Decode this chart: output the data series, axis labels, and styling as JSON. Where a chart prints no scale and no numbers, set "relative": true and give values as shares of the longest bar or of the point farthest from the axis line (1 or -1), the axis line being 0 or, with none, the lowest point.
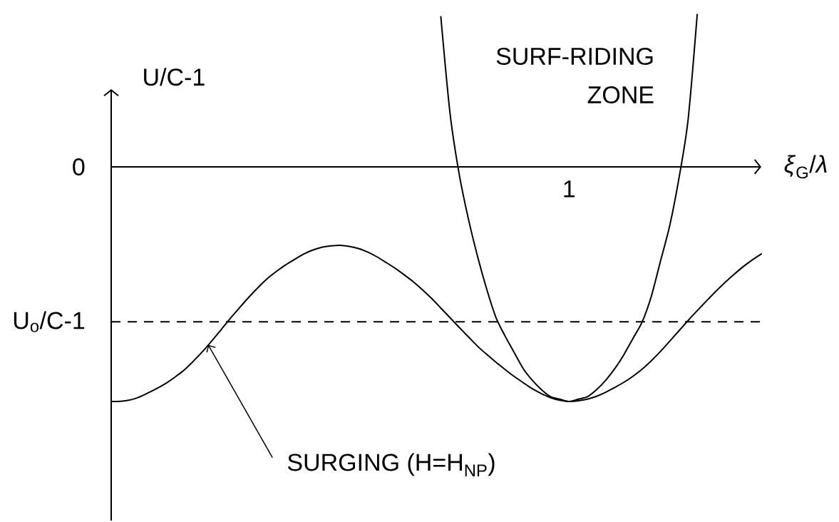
{
  "chart_data": {
    "type": "line",
    "relative": true,
    "xlabel": "*ξ*$_{G}$/*λ*",
    "ylabel": "U/C-1",
    "categories": [
      null,
      null,
      null,
      null,
      null,
      null,
      null,
      null,
      null,
      null,
      null,
      null,
      null,
      null,
      null,
      null,
      null,
      null,
      null,
      null,
      null,
      null,
      null,
      null,
      null,
      null,
      null,
      null,
      null,
      null,
      null,
      null,
      null,
      null,
      null,
      null,
      null,
      null,
      null,
      null,
      null,
      null,
      null,
      null,
      null,
      null,
      null,
      null,
      null,
      null,
      null,
      null,
      null,
      null,
      null,
      null,
      null,
      null,
      null,
      null,
      null,
      null,
      null,
      null,
      null,
      null,
      null,
      null,
      null,
      null,
      null,
      null
    ],
    "series": [
      {
        "color": "#000000",
        "values": [
          -1,
          -0.999,
          -0.994,
          -0.982,
          -0.964,
          -0.944,
          -0.922,
          -0.895,
          -0.865,
          -0.827,
          -0.786,
          -0.741,
          -0.694,
          -0.646,
          -0.601,
          -0.557,
          -0.516,
          -0.478,
          -0.447,
          -0.419,
          -0.395,
          -0.372,
          -0.355,
          -0.343,
          -0.337,
          -0.334,
          -0.339,
          -0.348,
          -0.363,
          -0.383,
          -0.407,
          -0.432,
          -0.46,
          -0.49,
          -0.524,
          -0.561,
          -0.602,
          -0.643,
          -0.684,
          -0.724,
          -0.764,
          -0.799,
          -0.832,
          -0.863,
          -0.893,
          -0.92,
          -0.946,
          -0.967,
          -0.984,
          -0.995,
          -1,
          -0.997,
          -0.99,
          -0.978,
          -0.961,
          -0.94,
          -0.918,
          -0.892,
          -0.862,
          -0.826,
          -0.786,
          -0.743,
          -0.699,
          -0.655,
          -0.613,
          -0.572,
          -0.532,
          -0.494,
          -0.459,
          -0.426,
          -0.397,
          -0.371
        ]
      },
      {
        "color": "#000000",
        "values": [
          null,
          null,
          null,
          null,
          null,
          null,
          null,
          null,
          null,
          null,
          null,
          null,
          null,
          null,
          null,
          null,
          null,
          null,
          null,
          null,
          null,
          null,
          null,
          null,
          null,
          null,
          null,
          null,
          null,
          null,
          null,
          null,
          null,
          null,
          null,
          null,
          0.64,
          0.23,
          -0.03,
          -0.22,
          -0.38,
          -0.52,
          -0.64,
          -0.72,
          -0.79,
          -0.86,
          -0.91,
          -0.95,
          -0.98,
          -0.99,
          -1,
          -0.99,
          -0.98,
          -0.95,
          -0.91,
          -0.86,
          -0.8,
          -0.73,
          -0.66,
          -0.55,
          -0.4,
          -0.25,
          -0.05,
          0.2,
          0.65,
          null,
          null,
          null,
          null,
          null,
          null,
          null
        ]
      }
    ],
    "ref_lines": [
      {
        "axis": "y",
        "value": -0.66,
        "label": "U$_{o}$/C-1",
        "line_style": "dashed"
      }
    ],
    "annotations": [
      "0",
      "1",
      "SURF-RIDING ZONE",
      "SURGING (H=H$_{NP}$)"
    ]
  }
}
